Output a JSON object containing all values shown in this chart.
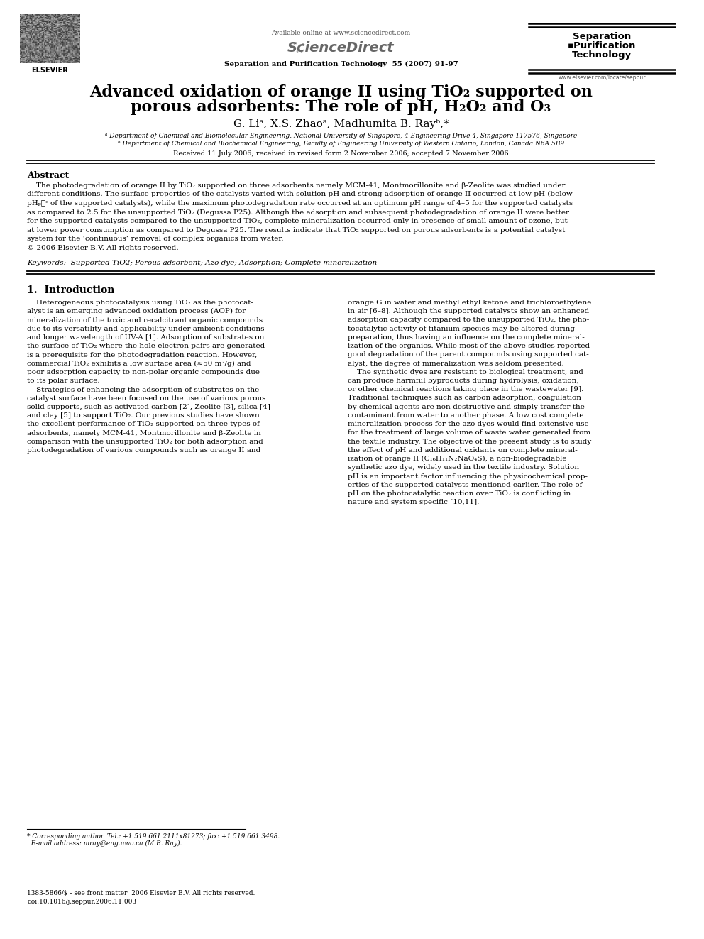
{
  "bg_color": "#ffffff",
  "page_width": 9.92,
  "page_height": 13.23,
  "available_online": "Available online at www.sciencedirect.com",
  "journal_name": "Separation and Purification Technology  55 (2007) 91-97",
  "website": "www.elsevier.com/locate/seppur",
  "sep_box_line1": "Separation",
  "sep_box_line2": "Purification",
  "sep_box_line3": "Technology",
  "title_line1_pre": "Advanced oxidation of orange II using TiO",
  "title_line1_post": " supported on",
  "title_line2_pre": "porous adsorbents: The role of pH, H",
  "title_line2_mid": "O",
  "title_line2_post": " and O",
  "abstract_title": "Abstract",
  "keywords_label": "Keywords:",
  "keywords_text": "  Supported TiO2; Porous adsorbent; Azo dye; Adsorption; Complete mineralization",
  "section1_title": "1.  Introduction",
  "received": "Received 11 July 2006; received in revised form 2 November 2006; accepted 7 November 2006",
  "affil_a": "a Department of Chemical and Biomolecular Engineering, National University of Singapore, 4 Engineering Drive 4, Singapore 117576, Singapore",
  "affil_b": "b Department of Chemical and Biochemical Engineering, Faculty of Engineering University of Western Ontario, London, Canada N6A 5B9",
  "footnote1": "* Corresponding author. Tel.: +1 519 661 2111x81273; fax: +1 519 661 3498.",
  "footnote2": "  E-mail address: mray@eng.uwo.ca (M.B. Ray).",
  "footer_issn": "1383-5866/$ - see front matter  2006 Elsevier B.V. All rights reserved.",
  "footer_doi": "doi:10.1016/j.seppur.2006.11.003"
}
